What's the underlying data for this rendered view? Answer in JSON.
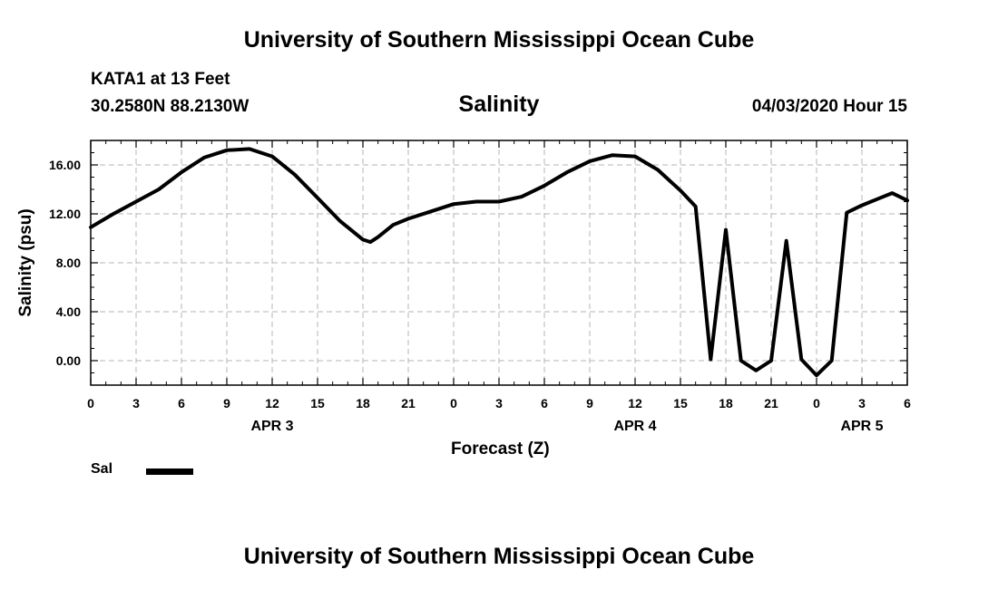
{
  "header": {
    "title": "University of Southern Mississippi Ocean Cube",
    "station": "KATA1 at 13 Feet",
    "location": "30.2580N 88.2130W",
    "date": "04/03/2020 Hour 15"
  },
  "footer": {
    "title": "University of Southern Mississippi Ocean Cube"
  },
  "chart_data": {
    "type": "line",
    "title": "Salinity",
    "xlabel": "Forecast (Z)",
    "ylabel": "Salinity (psu)",
    "xlim": [
      0,
      54
    ],
    "ylim": [
      -2,
      18
    ],
    "yticks": [
      0,
      4,
      8,
      12,
      16
    ],
    "ytick_labels": [
      "0.00",
      "4.00",
      "8.00",
      "12.00",
      "16.00"
    ],
    "xticks": [
      0,
      3,
      6,
      9,
      12,
      15,
      18,
      21,
      24,
      27,
      30,
      33,
      36,
      39,
      42,
      45,
      48,
      51,
      54
    ],
    "xtick_labels": [
      "0",
      "3",
      "6",
      "9",
      "12",
      "15",
      "18",
      "21",
      "0",
      "3",
      "6",
      "9",
      "12",
      "15",
      "18",
      "21",
      "0",
      "3",
      "6"
    ],
    "day_labels": [
      {
        "x": 12,
        "label": "APR 3"
      },
      {
        "x": 36,
        "label": "APR 4"
      },
      {
        "x": 51,
        "label": "APR 5"
      }
    ],
    "grid": true,
    "legend_position": "bottom-left",
    "series": [
      {
        "name": "Sal",
        "color": "#000000",
        "x": [
          0,
          1.5,
          3,
          4.5,
          6,
          7.5,
          9,
          10.5,
          12,
          13.5,
          15,
          16.5,
          18,
          18.5,
          19,
          20,
          21,
          22.5,
          24,
          25.5,
          27,
          28.5,
          30,
          31.5,
          33,
          34.5,
          36,
          37.5,
          39,
          40,
          41,
          42,
          43,
          44,
          45,
          46,
          47,
          48,
          49,
          50,
          51,
          52,
          53,
          54
        ],
        "y": [
          10.9,
          12.0,
          13.0,
          14.0,
          15.4,
          16.6,
          17.2,
          17.3,
          16.7,
          15.2,
          13.3,
          11.4,
          9.9,
          9.7,
          10.1,
          11.1,
          11.6,
          12.2,
          12.8,
          13.0,
          13.0,
          13.4,
          14.3,
          15.4,
          16.3,
          16.8,
          16.7,
          15.6,
          13.9,
          12.6,
          0.1,
          10.7,
          0.0,
          -0.8,
          0.0,
          9.8,
          0.1,
          -1.2,
          0.0,
          12.1,
          12.7,
          13.2,
          13.7,
          13.1
        ]
      }
    ]
  }
}
